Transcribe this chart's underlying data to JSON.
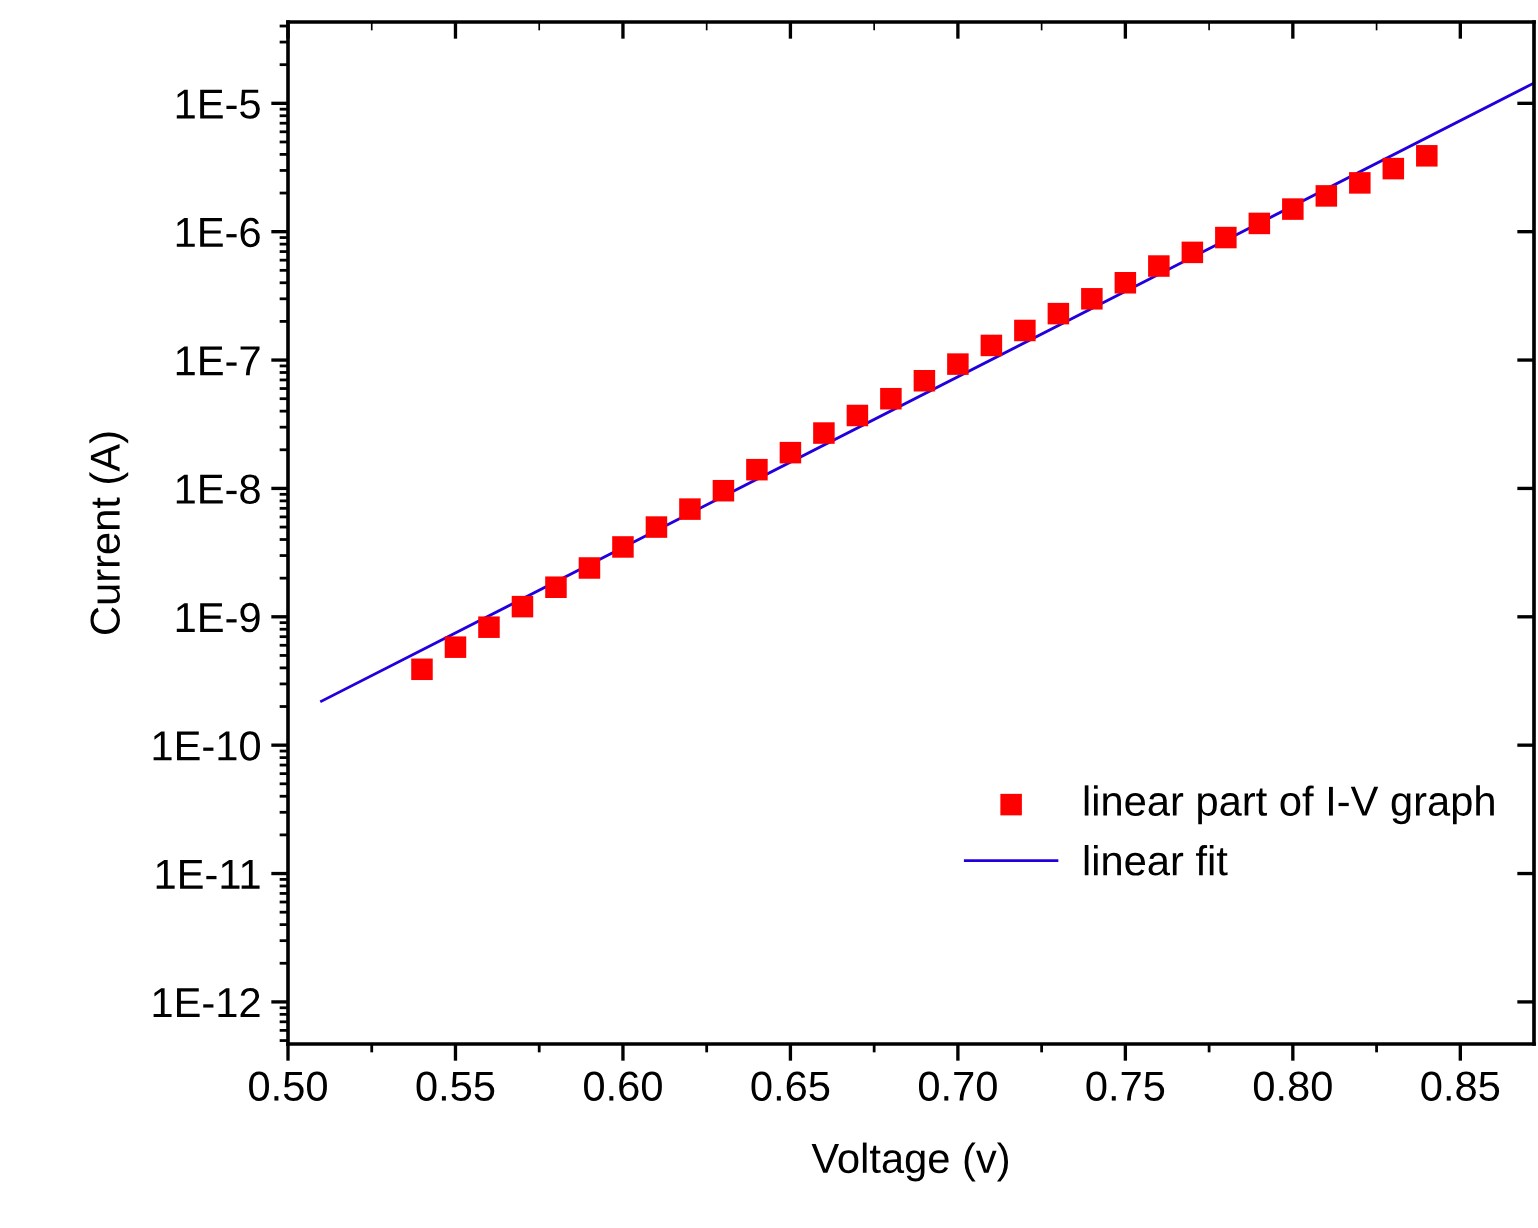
{
  "chart_data": {
    "type": "scatter",
    "xlabel": "Voltage (v)",
    "ylabel": "Current (A)",
    "log": "y",
    "grid": false,
    "legend": "right",
    "xlim": [
      0.5,
      0.872
    ],
    "ylim": [
      4.7e-13,
      4.3e-05
    ],
    "xticks": [
      {
        "value": 0.5,
        "label": "0.50"
      },
      {
        "value": 0.55,
        "label": "0.55"
      },
      {
        "value": 0.6,
        "label": "0.60"
      },
      {
        "value": 0.65,
        "label": "0.65"
      },
      {
        "value": 0.7,
        "label": "0.70"
      },
      {
        "value": 0.75,
        "label": "0.75"
      },
      {
        "value": 0.8,
        "label": "0.80"
      },
      {
        "value": 0.85,
        "label": "0.85"
      }
    ],
    "yticks": [
      {
        "value": 1e-12,
        "label": "1E-12"
      },
      {
        "value": 1e-11,
        "label": "1E-11"
      },
      {
        "value": 1e-10,
        "label": "1E-10"
      },
      {
        "value": 1e-09,
        "label": "1E-9"
      },
      {
        "value": 1e-08,
        "label": "1E-8"
      },
      {
        "value": 1e-07,
        "label": "1E-7"
      },
      {
        "value": 1e-06,
        "label": "1E-6"
      },
      {
        "value": 1e-05,
        "label": "1E-5"
      }
    ],
    "series": [
      {
        "name": "linear part of I-V graph",
        "marker": "square",
        "color": "#ff0000",
        "x": [
          0.54,
          0.55,
          0.56,
          0.57,
          0.58,
          0.59,
          0.6,
          0.61,
          0.62,
          0.63,
          0.64,
          0.65,
          0.66,
          0.67,
          0.68,
          0.69,
          0.7,
          0.71,
          0.72,
          0.73,
          0.74,
          0.75,
          0.76,
          0.77,
          0.78,
          0.79,
          0.8,
          0.81,
          0.82,
          0.83,
          0.84
        ],
        "values": [
          3.9e-10,
          5.8e-10,
          8.3e-10,
          1.2e-09,
          1.7e-09,
          2.4e-09,
          3.5e-09,
          5e-09,
          6.9e-09,
          9.6e-09,
          1.4e-08,
          1.9e-08,
          2.7e-08,
          3.7e-08,
          5e-08,
          6.9e-08,
          9.3e-08,
          1.3e-07,
          1.7e-07,
          2.3e-07,
          3e-07,
          4e-07,
          5.4e-07,
          6.9e-07,
          9e-07,
          1.16e-06,
          1.5e-06,
          1.9e-06,
          2.4e-06,
          3.1e-06,
          3.9e-06
        ]
      },
      {
        "name": "linear fit",
        "type": "line",
        "marker": "none",
        "line_style": "solid",
        "color": "#2200dd",
        "x": [
          0.51,
          0.872
        ],
        "values": [
          2.2e-10,
          1.44e-05
        ]
      }
    ]
  }
}
